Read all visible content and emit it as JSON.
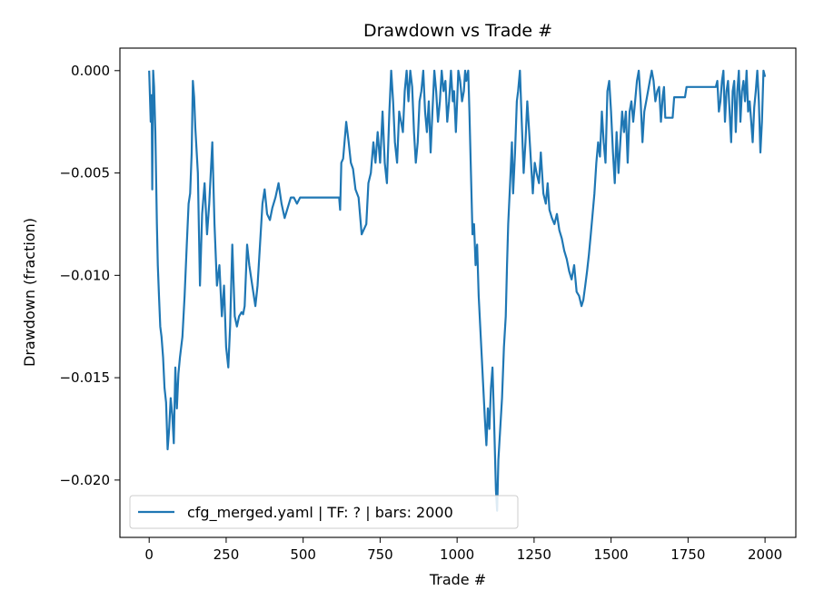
{
  "chart_data": {
    "type": "line",
    "title": "Drawdown vs Trade #",
    "xlabel": "Trade #",
    "ylabel": "Drawdown (fraction)",
    "xlim": [
      -95,
      2100
    ],
    "ylim": [
      -0.0228,
      0.0011
    ],
    "xticks": [
      0,
      250,
      500,
      750,
      1000,
      1250,
      1500,
      1750,
      2000
    ],
    "xtick_labels": [
      "0",
      "250",
      "500",
      "750",
      "1000",
      "1250",
      "1500",
      "1750",
      "2000"
    ],
    "yticks": [
      0.0,
      -0.005,
      -0.01,
      -0.015,
      -0.02
    ],
    "ytick_labels": [
      "0.000",
      "−0.005",
      "−0.010",
      "−0.015",
      "−0.020"
    ],
    "grid": false,
    "legend_position": "lower-left",
    "series": [
      {
        "name": "cfg_merged.yaml | TF: ? | bars: 2000",
        "color": "#1f77b4",
        "points": [
          [
            0,
            0.0
          ],
          [
            5,
            -0.0025
          ],
          [
            8,
            -0.0012
          ],
          [
            10,
            -0.0058
          ],
          [
            13,
            0.0
          ],
          [
            16,
            -0.0008
          ],
          [
            20,
            -0.003
          ],
          [
            25,
            -0.0075
          ],
          [
            28,
            -0.0095
          ],
          [
            32,
            -0.011
          ],
          [
            36,
            -0.0125
          ],
          [
            40,
            -0.013
          ],
          [
            45,
            -0.014
          ],
          [
            50,
            -0.0155
          ],
          [
            55,
            -0.0162
          ],
          [
            60,
            -0.0185
          ],
          [
            65,
            -0.0175
          ],
          [
            70,
            -0.016
          ],
          [
            75,
            -0.0168
          ],
          [
            80,
            -0.0182
          ],
          [
            85,
            -0.0145
          ],
          [
            90,
            -0.0165
          ],
          [
            95,
            -0.0148
          ],
          [
            100,
            -0.014
          ],
          [
            108,
            -0.013
          ],
          [
            115,
            -0.011
          ],
          [
            122,
            -0.0085
          ],
          [
            128,
            -0.0065
          ],
          [
            133,
            -0.006
          ],
          [
            138,
            -0.004
          ],
          [
            142,
            -0.0005
          ],
          [
            146,
            -0.0013
          ],
          [
            150,
            -0.0028
          ],
          [
            158,
            -0.005
          ],
          [
            165,
            -0.0105
          ],
          [
            172,
            -0.007
          ],
          [
            180,
            -0.0055
          ],
          [
            188,
            -0.008
          ],
          [
            195,
            -0.0065
          ],
          [
            205,
            -0.0035
          ],
          [
            212,
            -0.0075
          ],
          [
            220,
            -0.0105
          ],
          [
            228,
            -0.0095
          ],
          [
            236,
            -0.012
          ],
          [
            243,
            -0.0105
          ],
          [
            250,
            -0.0135
          ],
          [
            257,
            -0.0145
          ],
          [
            263,
            -0.0125
          ],
          [
            270,
            -0.0085
          ],
          [
            278,
            -0.012
          ],
          [
            285,
            -0.0125
          ],
          [
            292,
            -0.012
          ],
          [
            300,
            -0.0118
          ],
          [
            305,
            -0.0119
          ],
          [
            310,
            -0.0115
          ],
          [
            318,
            -0.0085
          ],
          [
            325,
            -0.0095
          ],
          [
            335,
            -0.0105
          ],
          [
            345,
            -0.0115
          ],
          [
            352,
            -0.0105
          ],
          [
            360,
            -0.0085
          ],
          [
            368,
            -0.0065
          ],
          [
            375,
            -0.0058
          ],
          [
            383,
            -0.007
          ],
          [
            392,
            -0.0073
          ],
          [
            400,
            -0.0067
          ],
          [
            410,
            -0.0062
          ],
          [
            420,
            -0.0055
          ],
          [
            430,
            -0.0065
          ],
          [
            440,
            -0.0072
          ],
          [
            450,
            -0.0067
          ],
          [
            460,
            -0.0062
          ],
          [
            470,
            -0.0062
          ],
          [
            480,
            -0.0065
          ],
          [
            490,
            -0.0062
          ],
          [
            500,
            -0.0062
          ],
          [
            520,
            -0.0062
          ],
          [
            560,
            -0.0062
          ],
          [
            600,
            -0.0062
          ],
          [
            617,
            -0.0062
          ],
          [
            620,
            -0.0068
          ],
          [
            624,
            -0.0045
          ],
          [
            630,
            -0.0043
          ],
          [
            640,
            -0.0025
          ],
          [
            648,
            -0.0035
          ],
          [
            655,
            -0.0045
          ],
          [
            662,
            -0.0048
          ],
          [
            670,
            -0.0058
          ],
          [
            680,
            -0.0062
          ],
          [
            690,
            -0.008
          ],
          [
            696,
            -0.0078
          ],
          [
            705,
            -0.0075
          ],
          [
            712,
            -0.0055
          ],
          [
            720,
            -0.005
          ],
          [
            728,
            -0.0035
          ],
          [
            735,
            -0.0045
          ],
          [
            742,
            -0.003
          ],
          [
            750,
            -0.0045
          ],
          [
            758,
            -0.002
          ],
          [
            765,
            -0.0045
          ],
          [
            772,
            -0.0055
          ],
          [
            780,
            -0.002
          ],
          [
            786,
            0.0
          ],
          [
            792,
            -0.0015
          ],
          [
            798,
            -0.0035
          ],
          [
            805,
            -0.0045
          ],
          [
            812,
            -0.002
          ],
          [
            818,
            -0.0025
          ],
          [
            824,
            -0.003
          ],
          [
            830,
            -0.001
          ],
          [
            836,
            0.0
          ],
          [
            842,
            -0.0015
          ],
          [
            848,
            0.0
          ],
          [
            854,
            -0.0008
          ],
          [
            860,
            -0.003
          ],
          [
            866,
            -0.0045
          ],
          [
            872,
            -0.0035
          ],
          [
            878,
            -0.0015
          ],
          [
            884,
            -0.001
          ],
          [
            890,
            0.0
          ],
          [
            896,
            -0.002
          ],
          [
            902,
            -0.003
          ],
          [
            908,
            -0.0015
          ],
          [
            914,
            -0.004
          ],
          [
            920,
            -0.002
          ],
          [
            926,
            0.0
          ],
          [
            932,
            -0.001
          ],
          [
            938,
            -0.0025
          ],
          [
            944,
            -0.0015
          ],
          [
            950,
            0.0
          ],
          [
            956,
            -0.001
          ],
          [
            962,
            -0.0005
          ],
          [
            968,
            -0.0025
          ],
          [
            974,
            -0.0015
          ],
          [
            980,
            0.0
          ],
          [
            986,
            -0.0015
          ],
          [
            990,
            -0.001
          ],
          [
            996,
            -0.003
          ],
          [
            1000,
            -0.0015
          ],
          [
            1004,
            0.0
          ],
          [
            1010,
            -0.0005
          ],
          [
            1016,
            -0.0015
          ],
          [
            1022,
            -0.001
          ],
          [
            1026,
            0.0
          ],
          [
            1030,
            -0.0005
          ],
          [
            1036,
            0.0
          ],
          [
            1040,
            -0.002
          ],
          [
            1045,
            -0.005
          ],
          [
            1050,
            -0.008
          ],
          [
            1055,
            -0.0075
          ],
          [
            1060,
            -0.0095
          ],
          [
            1065,
            -0.0085
          ],
          [
            1070,
            -0.011
          ],
          [
            1075,
            -0.0125
          ],
          [
            1080,
            -0.014
          ],
          [
            1085,
            -0.0155
          ],
          [
            1090,
            -0.017
          ],
          [
            1095,
            -0.0183
          ],
          [
            1100,
            -0.0165
          ],
          [
            1105,
            -0.0175
          ],
          [
            1110,
            -0.0155
          ],
          [
            1115,
            -0.0145
          ],
          [
            1120,
            -0.017
          ],
          [
            1126,
            -0.0205
          ],
          [
            1130,
            -0.0215
          ],
          [
            1134,
            -0.019
          ],
          [
            1140,
            -0.0175
          ],
          [
            1146,
            -0.016
          ],
          [
            1152,
            -0.0135
          ],
          [
            1158,
            -0.012
          ],
          [
            1162,
            -0.0095
          ],
          [
            1166,
            -0.0075
          ],
          [
            1172,
            -0.0055
          ],
          [
            1178,
            -0.0035
          ],
          [
            1182,
            -0.006
          ],
          [
            1188,
            -0.004
          ],
          [
            1194,
            -0.0015
          ],
          [
            1198,
            -0.001
          ],
          [
            1204,
            0.0
          ],
          [
            1210,
            -0.0025
          ],
          [
            1216,
            -0.005
          ],
          [
            1222,
            -0.0035
          ],
          [
            1228,
            -0.0015
          ],
          [
            1234,
            -0.003
          ],
          [
            1240,
            -0.0045
          ],
          [
            1246,
            -0.006
          ],
          [
            1252,
            -0.0045
          ],
          [
            1258,
            -0.005
          ],
          [
            1266,
            -0.0055
          ],
          [
            1272,
            -0.004
          ],
          [
            1280,
            -0.006
          ],
          [
            1288,
            -0.0065
          ],
          [
            1294,
            -0.0055
          ],
          [
            1300,
            -0.0068
          ],
          [
            1308,
            -0.0072
          ],
          [
            1316,
            -0.0075
          ],
          [
            1324,
            -0.007
          ],
          [
            1332,
            -0.0078
          ],
          [
            1340,
            -0.0082
          ],
          [
            1348,
            -0.0088
          ],
          [
            1356,
            -0.0092
          ],
          [
            1364,
            -0.0098
          ],
          [
            1372,
            -0.0102
          ],
          [
            1380,
            -0.0095
          ],
          [
            1388,
            -0.0108
          ],
          [
            1396,
            -0.011
          ],
          [
            1404,
            -0.0115
          ],
          [
            1410,
            -0.0112
          ],
          [
            1416,
            -0.0105
          ],
          [
            1422,
            -0.0098
          ],
          [
            1428,
            -0.009
          ],
          [
            1434,
            -0.008
          ],
          [
            1440,
            -0.007
          ],
          [
            1446,
            -0.006
          ],
          [
            1452,
            -0.0045
          ],
          [
            1458,
            -0.0035
          ],
          [
            1464,
            -0.0042
          ],
          [
            1470,
            -0.002
          ],
          [
            1476,
            -0.0035
          ],
          [
            1482,
            -0.0045
          ],
          [
            1488,
            -0.001
          ],
          [
            1494,
            -0.0005
          ],
          [
            1500,
            -0.002
          ],
          [
            1506,
            -0.004
          ],
          [
            1512,
            -0.0055
          ],
          [
            1518,
            -0.003
          ],
          [
            1524,
            -0.005
          ],
          [
            1530,
            -0.0035
          ],
          [
            1536,
            -0.002
          ],
          [
            1542,
            -0.003
          ],
          [
            1548,
            -0.002
          ],
          [
            1554,
            -0.0045
          ],
          [
            1560,
            -0.002
          ],
          [
            1566,
            -0.0015
          ],
          [
            1572,
            -0.0025
          ],
          [
            1578,
            -0.0015
          ],
          [
            1584,
            -0.0005
          ],
          [
            1590,
            0.0
          ],
          [
            1596,
            -0.0015
          ],
          [
            1602,
            -0.0035
          ],
          [
            1608,
            -0.002
          ],
          [
            1614,
            -0.0015
          ],
          [
            1620,
            -0.001
          ],
          [
            1626,
            -0.0005
          ],
          [
            1632,
            0.0
          ],
          [
            1638,
            -0.0005
          ],
          [
            1644,
            -0.0015
          ],
          [
            1650,
            -0.001
          ],
          [
            1656,
            -0.0008
          ],
          [
            1662,
            -0.0025
          ],
          [
            1668,
            -0.0012
          ],
          [
            1672,
            -0.0008
          ],
          [
            1676,
            -0.0023
          ],
          [
            1690,
            -0.0023
          ],
          [
            1700,
            -0.0023
          ],
          [
            1705,
            -0.0013
          ],
          [
            1720,
            -0.0013
          ],
          [
            1740,
            -0.0013
          ],
          [
            1745,
            -0.0008
          ],
          [
            1770,
            -0.0008
          ],
          [
            1790,
            -0.0008
          ],
          [
            1800,
            -0.0008
          ],
          [
            1810,
            -0.0008
          ],
          [
            1820,
            -0.0008
          ],
          [
            1830,
            -0.0008
          ],
          [
            1840,
            -0.0008
          ],
          [
            1845,
            -0.0005
          ],
          [
            1850,
            -0.002
          ],
          [
            1855,
            -0.0015
          ],
          [
            1860,
            -0.0005
          ],
          [
            1865,
            0.0
          ],
          [
            1870,
            -0.0025
          ],
          [
            1875,
            -0.001
          ],
          [
            1880,
            -0.0005
          ],
          [
            1885,
            -0.002
          ],
          [
            1890,
            -0.0035
          ],
          [
            1895,
            -0.001
          ],
          [
            1900,
            -0.0005
          ],
          [
            1905,
            -0.003
          ],
          [
            1910,
            -0.001
          ],
          [
            1915,
            0.0
          ],
          [
            1920,
            -0.0025
          ],
          [
            1925,
            -0.001
          ],
          [
            1930,
            -0.0005
          ],
          [
            1935,
            -0.0015
          ],
          [
            1940,
            0.0
          ],
          [
            1945,
            -0.002
          ],
          [
            1950,
            -0.0015
          ],
          [
            1955,
            -0.0025
          ],
          [
            1960,
            -0.0035
          ],
          [
            1965,
            -0.0018
          ],
          [
            1970,
            -0.001
          ],
          [
            1975,
            0.0
          ],
          [
            1980,
            -0.0015
          ],
          [
            1985,
            -0.004
          ],
          [
            1990,
            -0.0025
          ],
          [
            1995,
            0.0
          ],
          [
            2000,
            -0.0003
          ]
        ]
      }
    ]
  }
}
